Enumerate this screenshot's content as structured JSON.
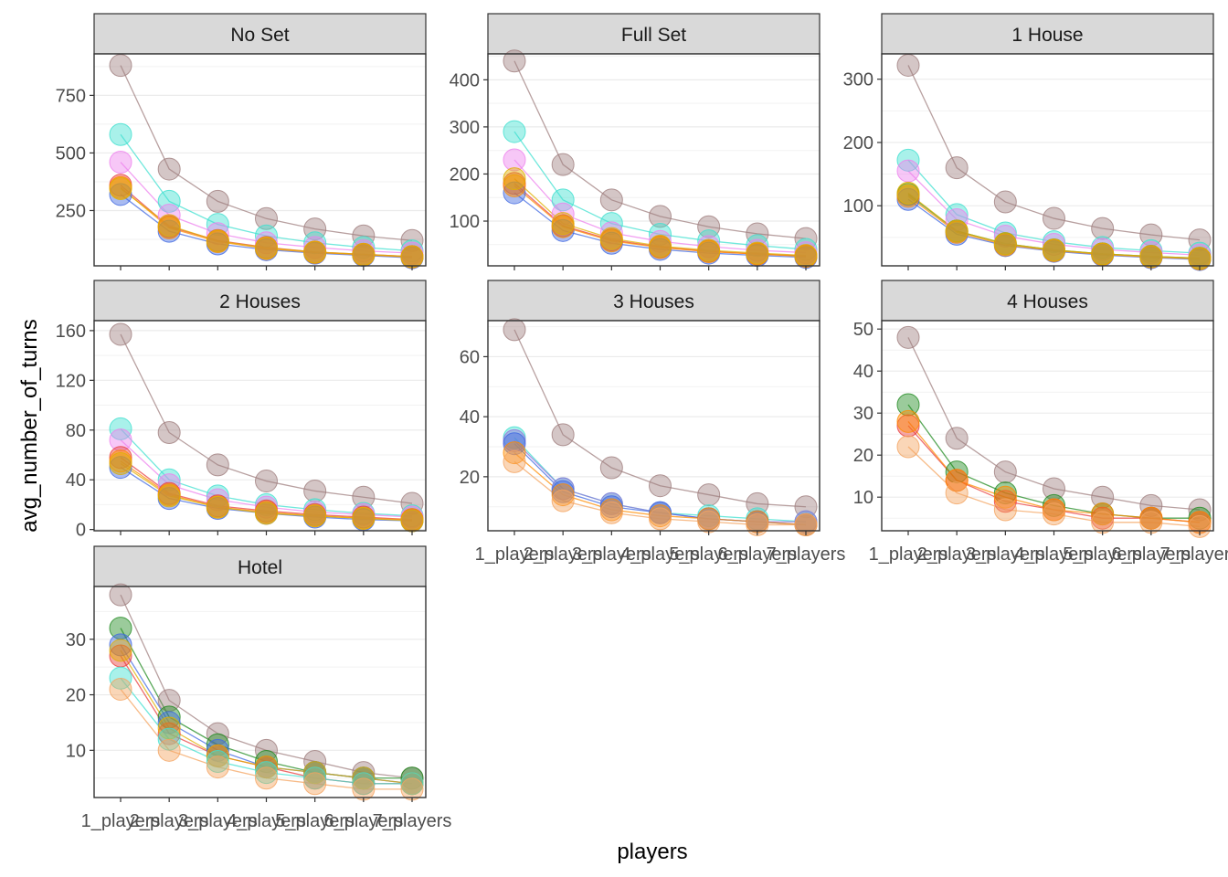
{
  "chart_data": {
    "type": "line",
    "xlabel": "players",
    "ylabel": "avg_number_of_turns",
    "categories": [
      "1_players",
      "2_players",
      "3_players",
      "4_players",
      "5_players",
      "6_players",
      "7_players"
    ],
    "series_colors": {
      "s1": "#4169e1",
      "s2": "#40e0d0",
      "s3": "#ee82ee",
      "s4": "#e83e3e",
      "s5": "#228b22",
      "s6": "#f4a460",
      "s7": "#ff8c00",
      "s8": "#e0b000",
      "s9": "#9370db",
      "s10": "#a08080"
    },
    "panels": [
      {
        "title": "No Set",
        "ylim": [
          10,
          930
        ],
        "yticks": [
          250,
          500,
          750
        ],
        "series": [
          {
            "key": "s10",
            "values": [
              880,
              430,
              290,
              215,
              170,
              140,
              120
            ]
          },
          {
            "key": "s2",
            "values": [
              580,
              290,
              190,
              140,
              110,
              90,
              75
            ]
          },
          {
            "key": "s3",
            "values": [
              460,
              230,
              150,
              110,
              90,
              75,
              65
            ]
          },
          {
            "key": "s4",
            "values": [
              360,
              180,
              120,
              90,
              70,
              60,
              50
            ]
          },
          {
            "key": "s1",
            "values": [
              320,
              160,
              105,
              80,
              65,
              55,
              45
            ]
          },
          {
            "key": "s7",
            "values": [
              350,
              175,
              115,
              85,
              68,
              58,
              48
            ]
          },
          {
            "key": "s8",
            "values": [
              345,
              185,
              118,
              88,
              70,
              60,
              50
            ]
          }
        ]
      },
      {
        "title": "Full Set",
        "ylim": [
          5,
          455
        ],
        "yticks": [
          100,
          200,
          300,
          400
        ],
        "series": [
          {
            "key": "s10",
            "values": [
              440,
              220,
              145,
              110,
              88,
              73,
              63
            ]
          },
          {
            "key": "s2",
            "values": [
              290,
              145,
              95,
              72,
              58,
              48,
              40
            ]
          },
          {
            "key": "s3",
            "values": [
              230,
              115,
              75,
              57,
              46,
              38,
              33
            ]
          },
          {
            "key": "s4",
            "values": [
              180,
              90,
              60,
              45,
              36,
              30,
              26
            ]
          },
          {
            "key": "s1",
            "values": [
              160,
              80,
              53,
              40,
              32,
              27,
              23
            ]
          },
          {
            "key": "s7",
            "values": [
              175,
              88,
              58,
              44,
              35,
              30,
              25
            ]
          },
          {
            "key": "s8",
            "values": [
              190,
              95,
              63,
              47,
              38,
              32,
              27
            ]
          }
        ]
      },
      {
        "title": "1 House",
        "ylim": [
          5,
          340
        ],
        "yticks": [
          100,
          200,
          300
        ],
        "series": [
          {
            "key": "s10",
            "values": [
              322,
              160,
              106,
              80,
              64,
              54,
              46
            ]
          },
          {
            "key": "s2",
            "values": [
              172,
              86,
              57,
              43,
              34,
              29,
              25
            ]
          },
          {
            "key": "s3",
            "values": [
              155,
              78,
              52,
              39,
              31,
              26,
              22
            ]
          },
          {
            "key": "s5",
            "values": [
              118,
              60,
              40,
              30,
              24,
              20,
              17
            ]
          },
          {
            "key": "s1",
            "values": [
              110,
              55,
              37,
              28,
              22,
              18,
              15
            ]
          },
          {
            "key": "s7",
            "values": [
              115,
              58,
              38,
              29,
              23,
              19,
              16
            ]
          },
          {
            "key": "s8",
            "values": [
              120,
              60,
              40,
              30,
              24,
              20,
              17
            ]
          }
        ]
      },
      {
        "title": "2 Houses",
        "ylim": [
          -1,
          168
        ],
        "yticks": [
          0,
          40,
          80,
          120,
          160
        ],
        "series": [
          {
            "key": "s10",
            "values": [
              157,
              78,
              52,
              39,
              31,
              26,
              21
            ]
          },
          {
            "key": "s2",
            "values": [
              81,
              40,
              27,
              20,
              16,
              13,
              11
            ]
          },
          {
            "key": "s3",
            "values": [
              72,
              36,
              24,
              18,
              14,
              12,
              10
            ]
          },
          {
            "key": "s4",
            "values": [
              58,
              29,
              19,
              15,
              12,
              10,
              8
            ]
          },
          {
            "key": "s1",
            "values": [
              50,
              25,
              17,
              13,
              10,
              8,
              7
            ]
          },
          {
            "key": "s7",
            "values": [
              55,
              28,
              18,
              14,
              11,
              9,
              8
            ]
          },
          {
            "key": "s8",
            "values": [
              53,
              27,
              18,
              13,
              11,
              9,
              7
            ]
          }
        ]
      },
      {
        "title": "3 Houses",
        "ylim": [
          2,
          72
        ],
        "yticks": [
          20,
          40,
          60
        ],
        "series": [
          {
            "key": "s10",
            "values": [
              69,
              34,
              23,
              17,
              14,
              11,
              10
            ]
          },
          {
            "key": "s2",
            "values": [
              33,
              16,
              11,
              8,
              7,
              6,
              5
            ]
          },
          {
            "key": "s9",
            "values": [
              32,
              16,
              11,
              8,
              6,
              5,
              5
            ]
          },
          {
            "key": "s1",
            "values": [
              31,
              15,
              10,
              8,
              6,
              5,
              4
            ]
          },
          {
            "key": "s7",
            "values": [
              28,
              14,
              9,
              7,
              6,
              5,
              4
            ]
          },
          {
            "key": "s6",
            "values": [
              25,
              12,
              8,
              6,
              5,
              4,
              4
            ]
          }
        ]
      },
      {
        "title": "4 Houses",
        "ylim": [
          2,
          52
        ],
        "yticks": [
          10,
          20,
          30,
          40,
          50
        ],
        "series": [
          {
            "key": "s10",
            "values": [
              48,
              24,
              16,
              12,
              10,
              8,
              7
            ]
          },
          {
            "key": "s5",
            "values": [
              32,
              16,
              11,
              8,
              6,
              5,
              5
            ]
          },
          {
            "key": "s4",
            "values": [
              27,
              14,
              9,
              7,
              5,
              5,
              4
            ]
          },
          {
            "key": "s7",
            "values": [
              28,
              14,
              10,
              7,
              6,
              5,
              4
            ]
          },
          {
            "key": "s6",
            "values": [
              22,
              11,
              7,
              6,
              4,
              4,
              3
            ]
          }
        ]
      },
      {
        "title": "Hotel",
        "ylim": [
          1.5,
          39.5
        ],
        "yticks": [
          10,
          20,
          30
        ],
        "series": [
          {
            "key": "s10",
            "values": [
              38,
              19,
              13,
              10,
              8,
              6,
              5
            ]
          },
          {
            "key": "s5",
            "values": [
              32,
              16,
              11,
              8,
              6,
              5,
              5
            ]
          },
          {
            "key": "s1",
            "values": [
              29,
              15,
              10,
              7,
              6,
              5,
              4
            ]
          },
          {
            "key": "s4",
            "values": [
              27,
              13,
              9,
              7,
              5,
              4,
              4
            ]
          },
          {
            "key": "s8",
            "values": [
              28,
              14,
              9,
              7,
              6,
              5,
              4
            ]
          },
          {
            "key": "s2",
            "values": [
              23,
              12,
              8,
              6,
              5,
              4,
              4
            ]
          },
          {
            "key": "s6",
            "values": [
              21,
              10,
              7,
              5,
              4,
              3,
              3
            ]
          }
        ]
      }
    ]
  }
}
